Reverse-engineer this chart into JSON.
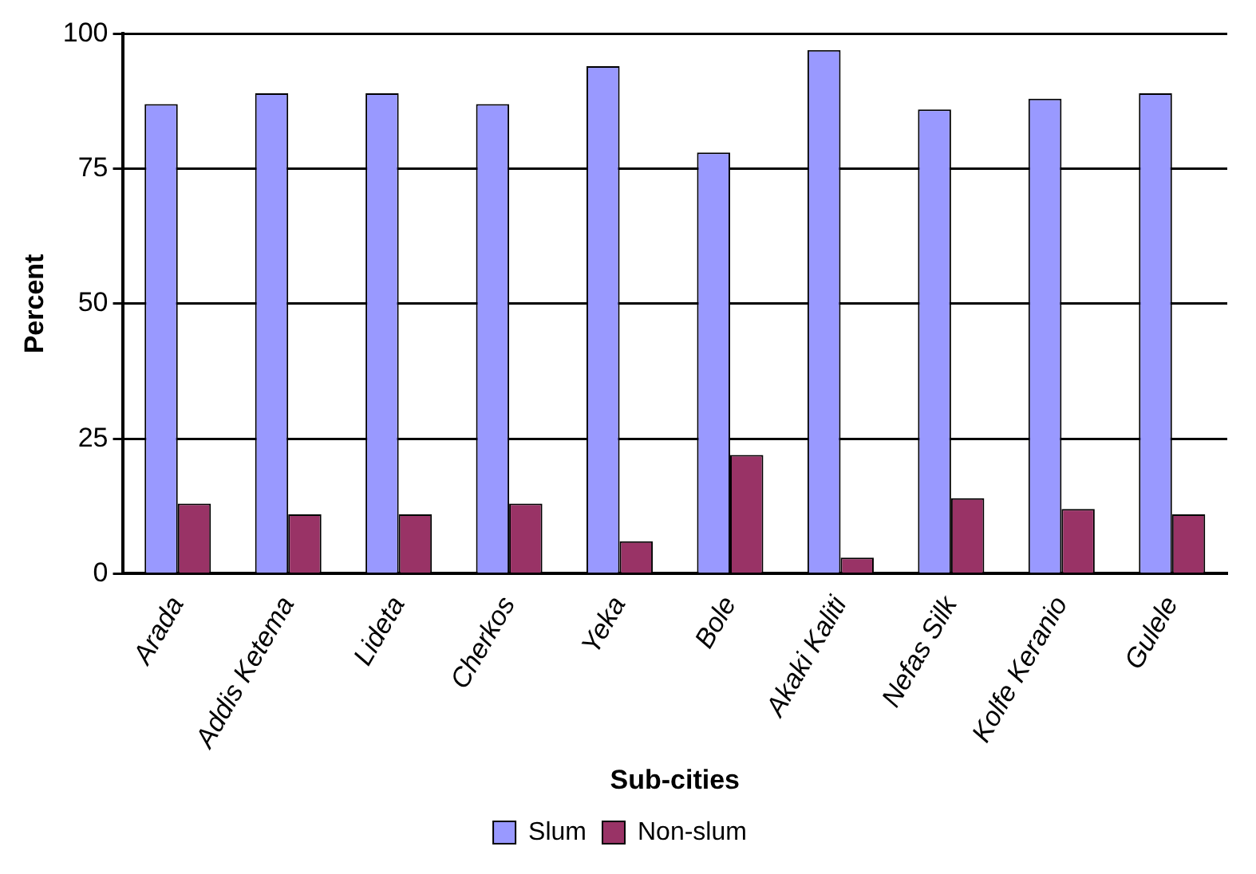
{
  "chart_data": {
    "type": "bar",
    "xlabel": "Sub-cities",
    "ylabel": "Percent",
    "categories": [
      "Arada",
      "Addis Ketema",
      "Lideta",
      "Cherkos",
      "Yeka",
      "Bole",
      "Akaki Kaliti",
      "Nefas Silk",
      "Kolfe Keranio",
      "Gulele"
    ],
    "series": [
      {
        "name": "Slum",
        "color": "#9999ff",
        "values": [
          87,
          89,
          89,
          87,
          94,
          78,
          97,
          86,
          88,
          89
        ]
      },
      {
        "name": "Non-slum",
        "color": "#993366",
        "values": [
          13,
          11,
          11,
          13,
          6,
          22,
          3,
          14,
          12,
          11
        ]
      }
    ],
    "ylim": [
      0,
      100
    ],
    "yticks": [
      0,
      25,
      50,
      75,
      100
    ],
    "grid": "y",
    "legend": "bottom"
  }
}
